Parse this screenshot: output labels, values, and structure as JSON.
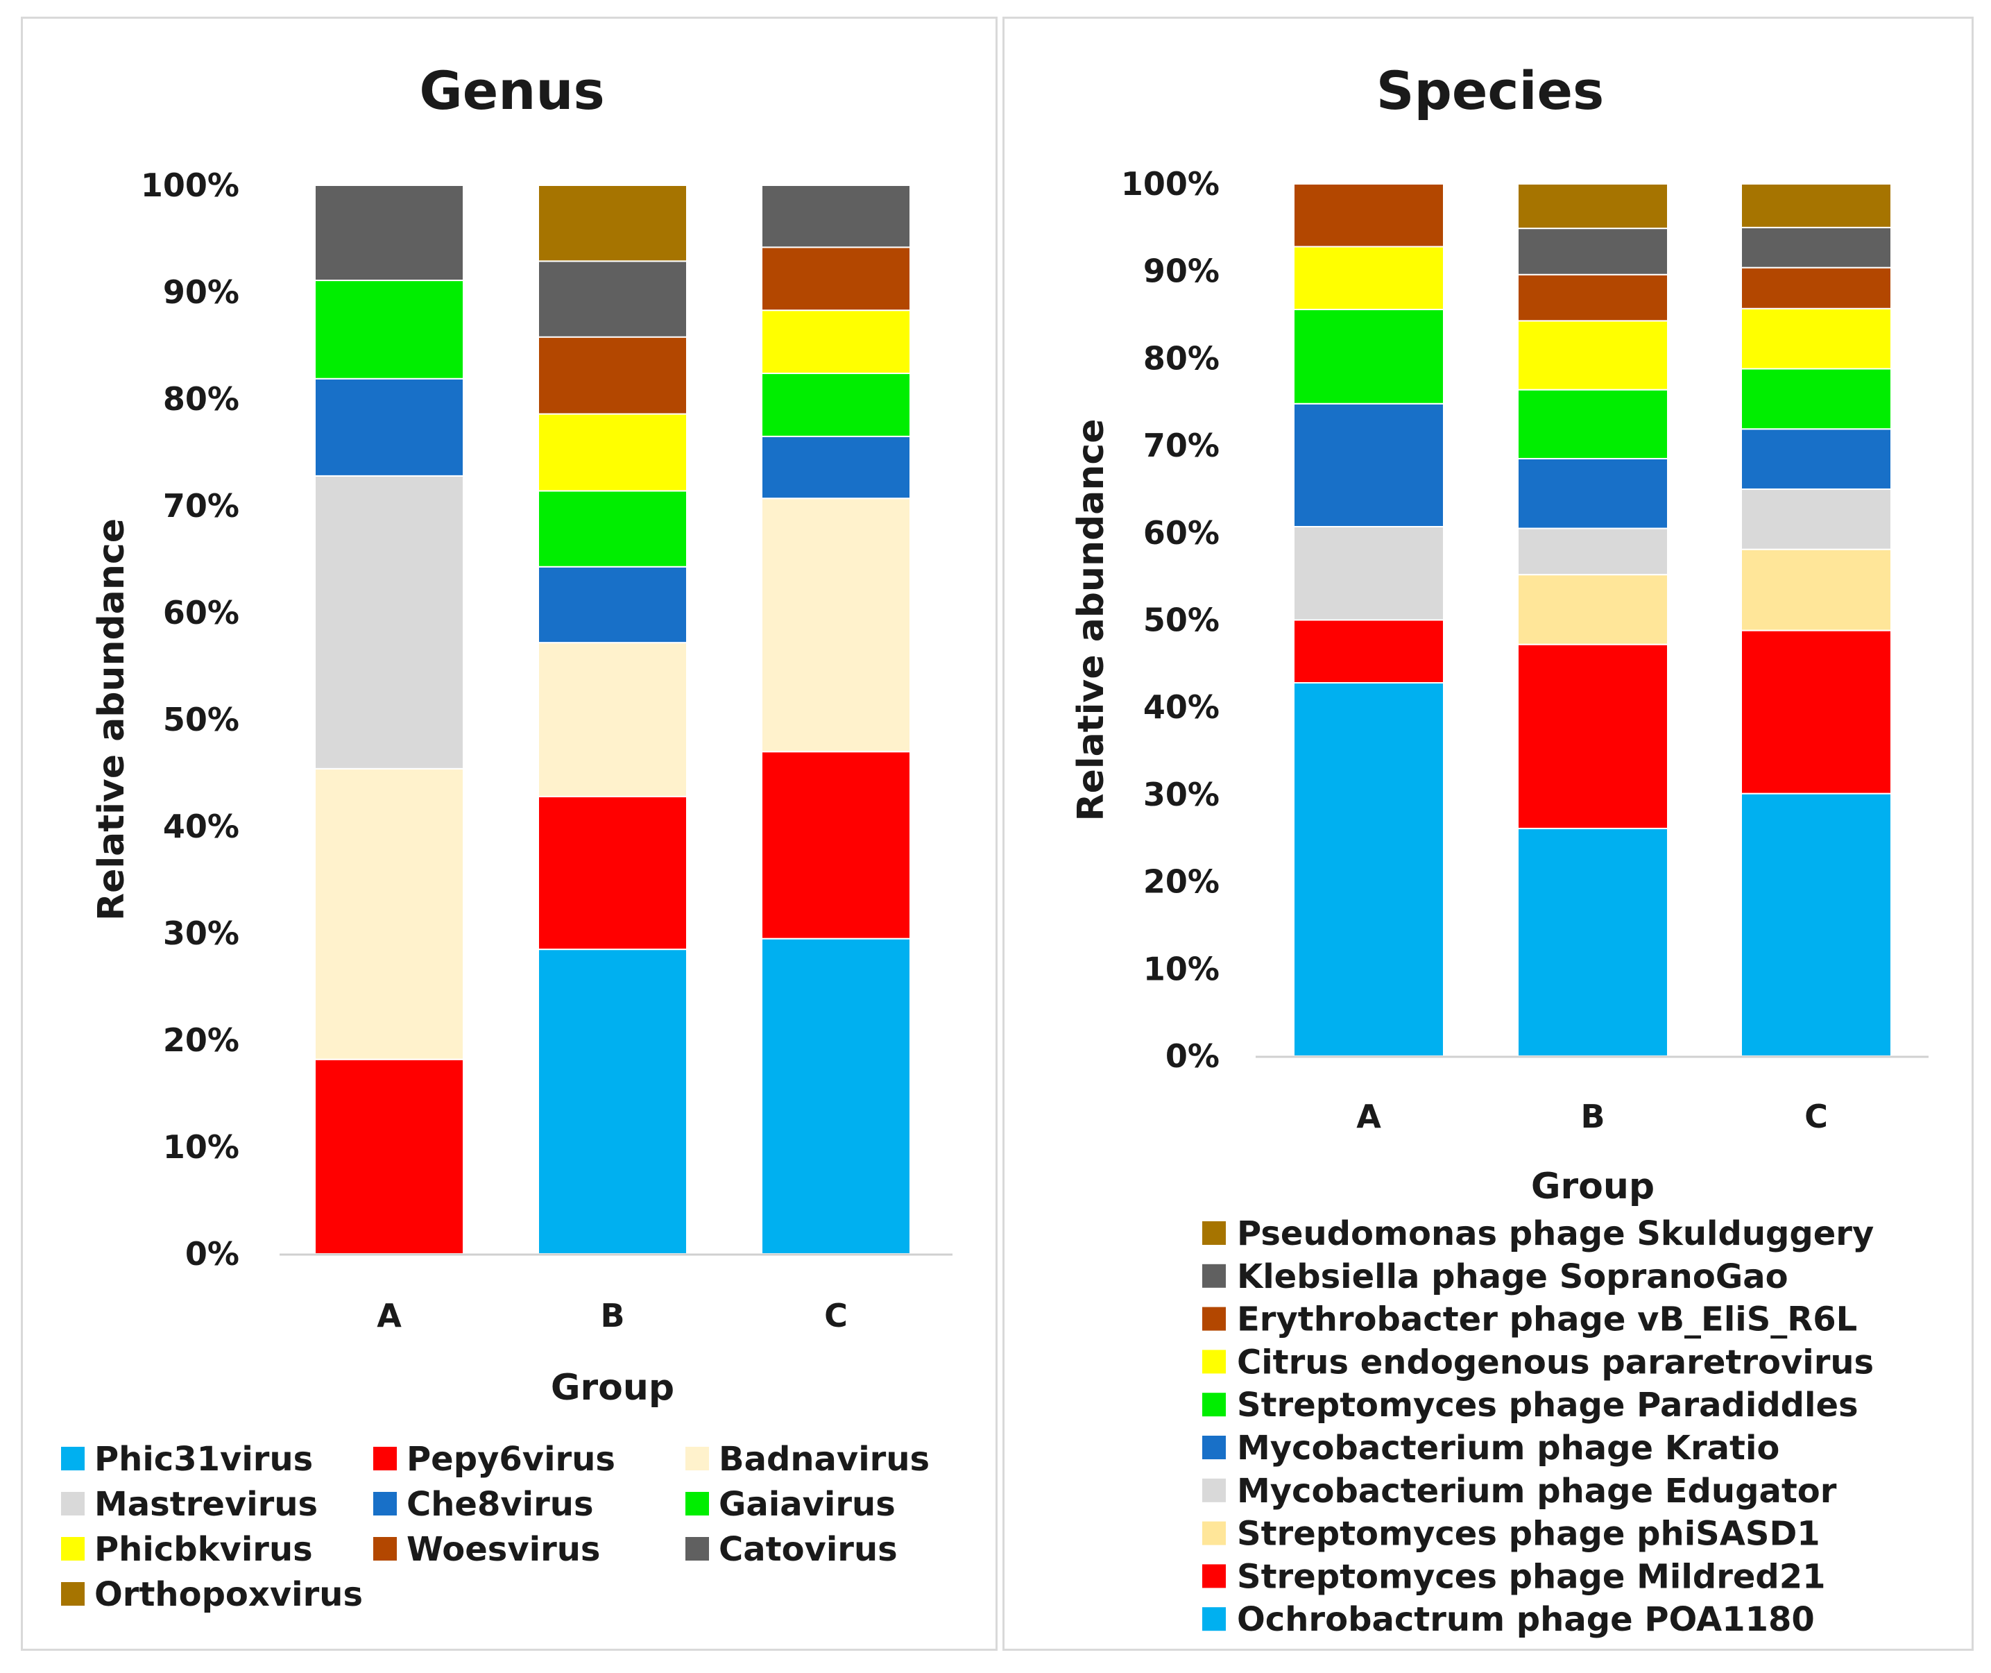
{
  "chart_data": [
    {
      "type": "bar",
      "stacked": true,
      "title": "Genus",
      "xlabel": "Group",
      "ylabel": "Relative abundance",
      "ylim": [
        0,
        100
      ],
      "yticks": [
        "0%",
        "10%",
        "20%",
        "30%",
        "40%",
        "50%",
        "60%",
        "70%",
        "80%",
        "90%",
        "100%"
      ],
      "categories": [
        "A",
        "B",
        "C"
      ],
      "series": [
        {
          "name": "Phic31virus",
          "color": "#00b0f0",
          "values": [
            0,
            28.5,
            29.5
          ]
        },
        {
          "name": "Pepy6virus",
          "color": "#ff0000",
          "values": [
            18.2,
            14.3,
            17.5
          ]
        },
        {
          "name": "Badnavirus",
          "color": "#fff2cc",
          "values": [
            27.2,
            14.4,
            23.7
          ]
        },
        {
          "name": "Mastrevirus",
          "color": "#d9d9d9",
          "values": [
            27.4,
            0,
            0
          ]
        },
        {
          "name": "Che8virus",
          "color": "#1870c8",
          "values": [
            9.1,
            7.1,
            5.8
          ]
        },
        {
          "name": "Gaiavirus",
          "color": "#00ee00",
          "values": [
            9.2,
            7.1,
            5.9
          ]
        },
        {
          "name": "Phicbkvirus",
          "color": "#ffff00",
          "values": [
            0,
            7.2,
            5.9
          ]
        },
        {
          "name": "Woesvirus",
          "color": "#b34700",
          "values": [
            0,
            7.2,
            5.9
          ]
        },
        {
          "name": "Catovirus",
          "color": "#606060",
          "values": [
            8.9,
            7.1,
            5.8
          ]
        },
        {
          "name": "Orthopoxvirus",
          "color": "#a67400",
          "values": [
            0,
            7.1,
            0
          ]
        }
      ]
    },
    {
      "type": "bar",
      "stacked": true,
      "title": "Species",
      "xlabel": "Group",
      "ylabel": "Relative abundance",
      "ylim": [
        0,
        100
      ],
      "yticks": [
        "0%",
        "10%",
        "20%",
        "30%",
        "40%",
        "50%",
        "60%",
        "70%",
        "80%",
        "90%",
        "100%"
      ],
      "categories": [
        "A",
        "B",
        "C"
      ],
      "series": [
        {
          "name": "Ochrobactrum phage POA1180",
          "color": "#00b0f0",
          "values": [
            42.8,
            26.1,
            30.1
          ]
        },
        {
          "name": "Streptomyces phage Mildred21",
          "color": "#ff0000",
          "values": [
            7.2,
            21.1,
            18.7
          ]
        },
        {
          "name": "Streptomyces phage phiSASD1",
          "color": "#ffe699",
          "values": [
            0,
            8.0,
            9.3
          ]
        },
        {
          "name": "Mycobacterium phage Edugator",
          "color": "#d9d9d9",
          "values": [
            10.7,
            5.3,
            6.9
          ]
        },
        {
          "name": "Mycobacterium phage Kratio",
          "color": "#1870c8",
          "values": [
            14.1,
            8.0,
            6.9
          ]
        },
        {
          "name": "Streptomyces phage Paradiddles",
          "color": "#00ee00",
          "values": [
            10.8,
            7.9,
            6.9
          ]
        },
        {
          "name": "Citrus endogenous pararetrovirus",
          "color": "#ffff00",
          "values": [
            7.2,
            7.9,
            6.9
          ]
        },
        {
          "name": "Erythrobacter phage vB_EliS_R6L",
          "color": "#b34700",
          "values": [
            7.2,
            5.3,
            4.7
          ]
        },
        {
          "name": "Klebsiella phage SopranoGao",
          "color": "#606060",
          "values": [
            0,
            5.3,
            4.6
          ]
        },
        {
          "name": "Pseudomonas phage Skulduggery",
          "color": "#a67400",
          "values": [
            0,
            5.1,
            5.0
          ]
        }
      ]
    }
  ]
}
